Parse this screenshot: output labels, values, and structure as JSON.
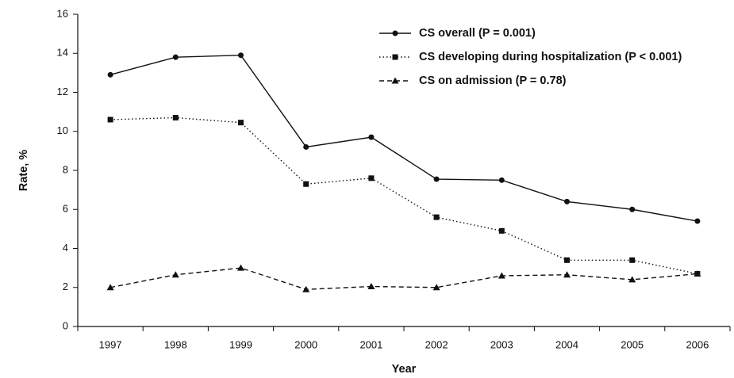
{
  "chart_data": {
    "type": "line",
    "x_label": "Year",
    "y_label": "Rate, %",
    "categories": [
      "1997",
      "1998",
      "1999",
      "2000",
      "2001",
      "2002",
      "2003",
      "2004",
      "2005",
      "2006"
    ],
    "series": [
      {
        "name": "CS overall (P = 0.001)",
        "color": "#111111",
        "line_style": "solid",
        "marker": "circle",
        "values": [
          12.9,
          13.8,
          13.9,
          9.2,
          9.7,
          7.55,
          7.5,
          6.4,
          6.0,
          5.4
        ]
      },
      {
        "name": "CS developing during hospitalization (P < 0.001)",
        "color": "#111111",
        "line_style": "dotted",
        "marker": "square",
        "values": [
          10.6,
          10.7,
          10.45,
          7.3,
          7.6,
          5.6,
          4.9,
          3.4,
          3.4,
          2.7
        ]
      },
      {
        "name": "CS on admission (P = 0.78)",
        "color": "#111111",
        "line_style": "dashed",
        "marker": "triangle",
        "values": [
          2.0,
          2.65,
          3.0,
          1.9,
          2.05,
          2.0,
          2.6,
          2.65,
          2.4,
          2.7
        ]
      }
    ],
    "ylim": [
      0,
      16
    ],
    "yticks": [
      0,
      2,
      4,
      6,
      8,
      10,
      12,
      14,
      16
    ],
    "grid": false
  }
}
